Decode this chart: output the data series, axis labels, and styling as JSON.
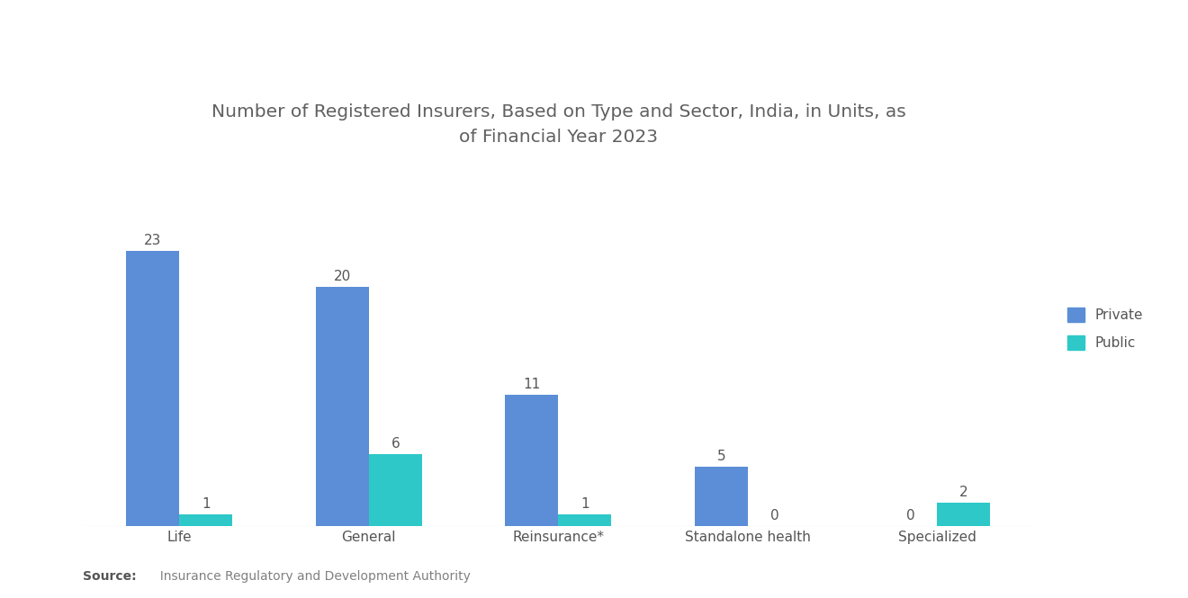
{
  "title": "Number of Registered Insurers, Based on Type and Sector, India, in Units, as\nof Financial Year 2023",
  "categories": [
    "Life",
    "General",
    "Reinsurance*",
    "Standalone health",
    "Specialized"
  ],
  "private_values": [
    23,
    20,
    11,
    5,
    0
  ],
  "public_values": [
    1,
    6,
    1,
    0,
    2
  ],
  "private_color": "#5B8ED6",
  "public_color": "#2EC8C8",
  "background_color": "#FFFFFF",
  "title_color": "#606060",
  "bar_width": 0.28,
  "ylim": [
    0,
    30
  ],
  "source_bold": "Source:",
  "source_text": "  Insurance Regulatory and Development Authority",
  "legend_labels": [
    "Private",
    "Public"
  ],
  "value_label_color": "#555555",
  "value_fontsize": 11,
  "tick_label_fontsize": 11,
  "title_fontsize": 14.5
}
